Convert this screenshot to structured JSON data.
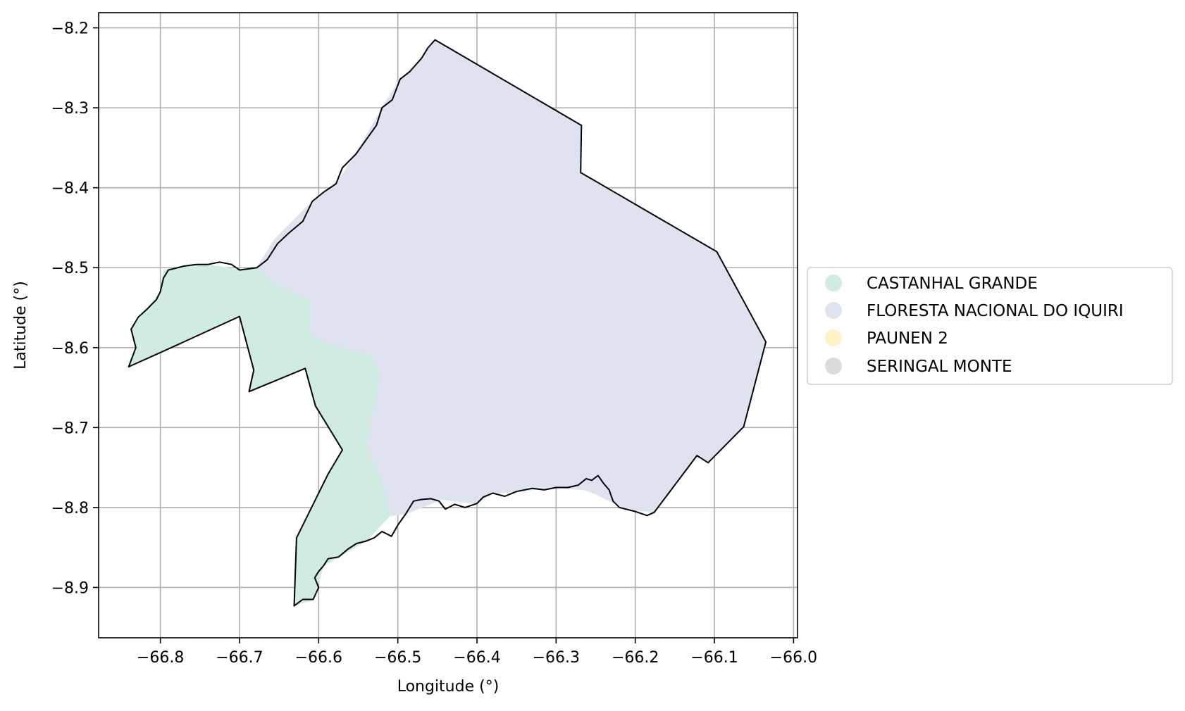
{
  "map": {
    "type": "choropleth-map",
    "xlabel": "Longitude (°)",
    "ylabel": "Latitude (°)",
    "xlim": [
      -66.878,
      -65.995
    ],
    "ylim": [
      -8.963,
      -8.181
    ],
    "grid": true,
    "x_ticks": [
      -66.8,
      -66.7,
      -66.6,
      -66.5,
      -66.4,
      -66.3,
      -66.2,
      -66.1,
      -66.0
    ],
    "x_tick_labels": [
      "−66.8",
      "−66.7",
      "−66.6",
      "−66.5",
      "−66.4",
      "−66.3",
      "−66.2",
      "−66.1",
      "−66.0"
    ],
    "y_ticks": [
      -8.2,
      -8.3,
      -8.4,
      -8.5,
      -8.6,
      -8.7,
      -8.8,
      -8.9
    ],
    "y_tick_labels": [
      "−8.2",
      "−8.3",
      "−8.4",
      "−8.5",
      "−8.6",
      "−8.7",
      "−8.8",
      "−8.9"
    ],
    "legend": {
      "placement": "center-right outside",
      "items": [
        {
          "label": "CASTANHAL GRANDE",
          "color": "#d0ebe0"
        },
        {
          "label": "FLORESTA NACIONAL DO IQUIRI",
          "color": "#dfe3f0"
        },
        {
          "label": "PAUNEN 2",
          "color": "#fdf3c6"
        },
        {
          "label": "SERINGAL MONTE",
          "color": "#dcdcdc"
        }
      ]
    },
    "colors": {
      "outline": "#000000",
      "grid": "#b0b0b0"
    },
    "regions": [
      {
        "name": "FLORESTA NACIONAL DO IQUIRI",
        "color": "#dfe3f0",
        "coords": [
          [
            -66.453,
            -8.215
          ],
          [
            -66.268,
            -8.322
          ],
          [
            -66.269,
            -8.381
          ],
          [
            -66.097,
            -8.48
          ],
          [
            -66.035,
            -8.593
          ],
          [
            -66.063,
            -8.699
          ],
          [
            -66.108,
            -8.744
          ],
          [
            -66.122,
            -8.735
          ],
          [
            -66.176,
            -8.806
          ],
          [
            -66.212,
            -8.802
          ],
          [
            -66.25,
            -8.783
          ],
          [
            -66.265,
            -8.778
          ],
          [
            -66.3,
            -8.775
          ],
          [
            -66.35,
            -8.78
          ],
          [
            -66.38,
            -8.782
          ],
          [
            -66.4,
            -8.795
          ],
          [
            -66.445,
            -8.79
          ],
          [
            -66.47,
            -8.8
          ],
          [
            -66.49,
            -8.808
          ],
          [
            -66.51,
            -8.81
          ],
          [
            -66.518,
            -8.775
          ],
          [
            -66.54,
            -8.722
          ],
          [
            -66.522,
            -8.632
          ],
          [
            -66.535,
            -8.61
          ],
          [
            -66.585,
            -8.597
          ],
          [
            -66.612,
            -8.583
          ],
          [
            -66.61,
            -8.542
          ],
          [
            -66.658,
            -8.52
          ],
          [
            -66.665,
            -8.51
          ],
          [
            -66.678,
            -8.5
          ],
          [
            -66.656,
            -8.465
          ],
          [
            -66.608,
            -8.417
          ],
          [
            -66.578,
            -8.395
          ],
          [
            -66.553,
            -8.358
          ],
          [
            -66.52,
            -8.3
          ],
          [
            -66.497,
            -8.264
          ],
          [
            -66.47,
            -8.238
          ]
        ]
      },
      {
        "name": "CASTANHAL GRANDE",
        "color": "#d0ebe0",
        "coords": [
          [
            -66.678,
            -8.5
          ],
          [
            -66.7,
            -8.503
          ],
          [
            -66.74,
            -8.496
          ],
          [
            -66.77,
            -8.498
          ],
          [
            -66.796,
            -8.503
          ],
          [
            -66.8,
            -8.53
          ],
          [
            -66.818,
            -8.553
          ],
          [
            -66.837,
            -8.577
          ],
          [
            -66.831,
            -8.6
          ],
          [
            -66.84,
            -8.624
          ],
          [
            -66.795,
            -8.604
          ],
          [
            -66.7,
            -8.561
          ],
          [
            -66.682,
            -8.628
          ],
          [
            -66.688,
            -8.655
          ],
          [
            -66.617,
            -8.626
          ],
          [
            -66.604,
            -8.673
          ],
          [
            -66.57,
            -8.728
          ],
          [
            -66.588,
            -8.758
          ],
          [
            -66.628,
            -8.838
          ],
          [
            -66.631,
            -8.923
          ],
          [
            -66.607,
            -8.915
          ],
          [
            -66.594,
            -8.873
          ],
          [
            -66.575,
            -8.862
          ],
          [
            -66.54,
            -8.842
          ],
          [
            -66.51,
            -8.81
          ],
          [
            -66.518,
            -8.775
          ],
          [
            -66.54,
            -8.722
          ],
          [
            -66.522,
            -8.632
          ],
          [
            -66.535,
            -8.61
          ],
          [
            -66.585,
            -8.597
          ],
          [
            -66.612,
            -8.583
          ],
          [
            -66.61,
            -8.542
          ],
          [
            -66.658,
            -8.52
          ],
          [
            -66.665,
            -8.51
          ]
        ]
      }
    ],
    "boundary": [
      [
        -66.453,
        -8.215
      ],
      [
        -66.268,
        -8.322
      ],
      [
        -66.269,
        -8.381
      ],
      [
        -66.097,
        -8.48
      ],
      [
        -66.035,
        -8.593
      ],
      [
        -66.063,
        -8.699
      ],
      [
        -66.108,
        -8.744
      ],
      [
        -66.122,
        -8.735
      ],
      [
        -66.176,
        -8.806
      ],
      [
        -66.185,
        -8.81
      ],
      [
        -66.2,
        -8.805
      ],
      [
        -66.212,
        -8.802
      ],
      [
        -66.22,
        -8.8
      ],
      [
        -66.228,
        -8.792
      ],
      [
        -66.233,
        -8.778
      ],
      [
        -66.24,
        -8.77
      ],
      [
        -66.247,
        -8.76
      ],
      [
        -66.255,
        -8.766
      ],
      [
        -66.262,
        -8.764
      ],
      [
        -66.272,
        -8.772
      ],
      [
        -66.285,
        -8.775
      ],
      [
        -66.3,
        -8.775
      ],
      [
        -66.315,
        -8.778
      ],
      [
        -66.33,
        -8.776
      ],
      [
        -66.35,
        -8.78
      ],
      [
        -66.365,
        -8.786
      ],
      [
        -66.38,
        -8.782
      ],
      [
        -66.392,
        -8.787
      ],
      [
        -66.4,
        -8.795
      ],
      [
        -66.415,
        -8.8
      ],
      [
        -66.428,
        -8.796
      ],
      [
        -66.44,
        -8.802
      ],
      [
        -66.448,
        -8.792
      ],
      [
        -66.458,
        -8.789
      ],
      [
        -66.47,
        -8.79
      ],
      [
        -66.48,
        -8.792
      ],
      [
        -66.49,
        -8.808
      ],
      [
        -66.5,
        -8.822
      ],
      [
        -66.508,
        -8.836
      ],
      [
        -66.52,
        -8.83
      ],
      [
        -66.53,
        -8.838
      ],
      [
        -66.54,
        -8.842
      ],
      [
        -66.552,
        -8.845
      ],
      [
        -66.563,
        -8.852
      ],
      [
        -66.575,
        -8.862
      ],
      [
        -66.588,
        -8.864
      ],
      [
        -66.594,
        -8.873
      ],
      [
        -66.6,
        -8.88
      ],
      [
        -66.605,
        -8.888
      ],
      [
        -66.6,
        -8.9
      ],
      [
        -66.607,
        -8.915
      ],
      [
        -66.62,
        -8.915
      ],
      [
        -66.631,
        -8.923
      ],
      [
        -66.628,
        -8.838
      ],
      [
        -66.588,
        -8.758
      ],
      [
        -66.57,
        -8.728
      ],
      [
        -66.604,
        -8.673
      ],
      [
        -66.617,
        -8.626
      ],
      [
        -66.688,
        -8.655
      ],
      [
        -66.682,
        -8.628
      ],
      [
        -66.7,
        -8.561
      ],
      [
        -66.795,
        -8.604
      ],
      [
        -66.84,
        -8.624
      ],
      [
        -66.831,
        -8.6
      ],
      [
        -66.837,
        -8.577
      ],
      [
        -66.828,
        -8.562
      ],
      [
        -66.818,
        -8.553
      ],
      [
        -66.805,
        -8.54
      ],
      [
        -66.8,
        -8.53
      ],
      [
        -66.796,
        -8.513
      ],
      [
        -66.79,
        -8.503
      ],
      [
        -66.77,
        -8.498
      ],
      [
        -66.755,
        -8.496
      ],
      [
        -66.74,
        -8.496
      ],
      [
        -66.725,
        -8.493
      ],
      [
        -66.71,
        -8.496
      ],
      [
        -66.7,
        -8.503
      ],
      [
        -66.678,
        -8.5
      ],
      [
        -66.665,
        -8.49
      ],
      [
        -66.652,
        -8.47
      ],
      [
        -66.638,
        -8.457
      ],
      [
        -66.62,
        -8.442
      ],
      [
        -66.608,
        -8.417
      ],
      [
        -66.593,
        -8.405
      ],
      [
        -66.578,
        -8.395
      ],
      [
        -66.57,
        -8.375
      ],
      [
        -66.553,
        -8.358
      ],
      [
        -66.54,
        -8.34
      ],
      [
        -66.527,
        -8.322
      ],
      [
        -66.52,
        -8.3
      ],
      [
        -66.507,
        -8.29
      ],
      [
        -66.497,
        -8.264
      ],
      [
        -66.485,
        -8.255
      ],
      [
        -66.47,
        -8.238
      ],
      [
        -66.462,
        -8.225
      ]
    ]
  }
}
